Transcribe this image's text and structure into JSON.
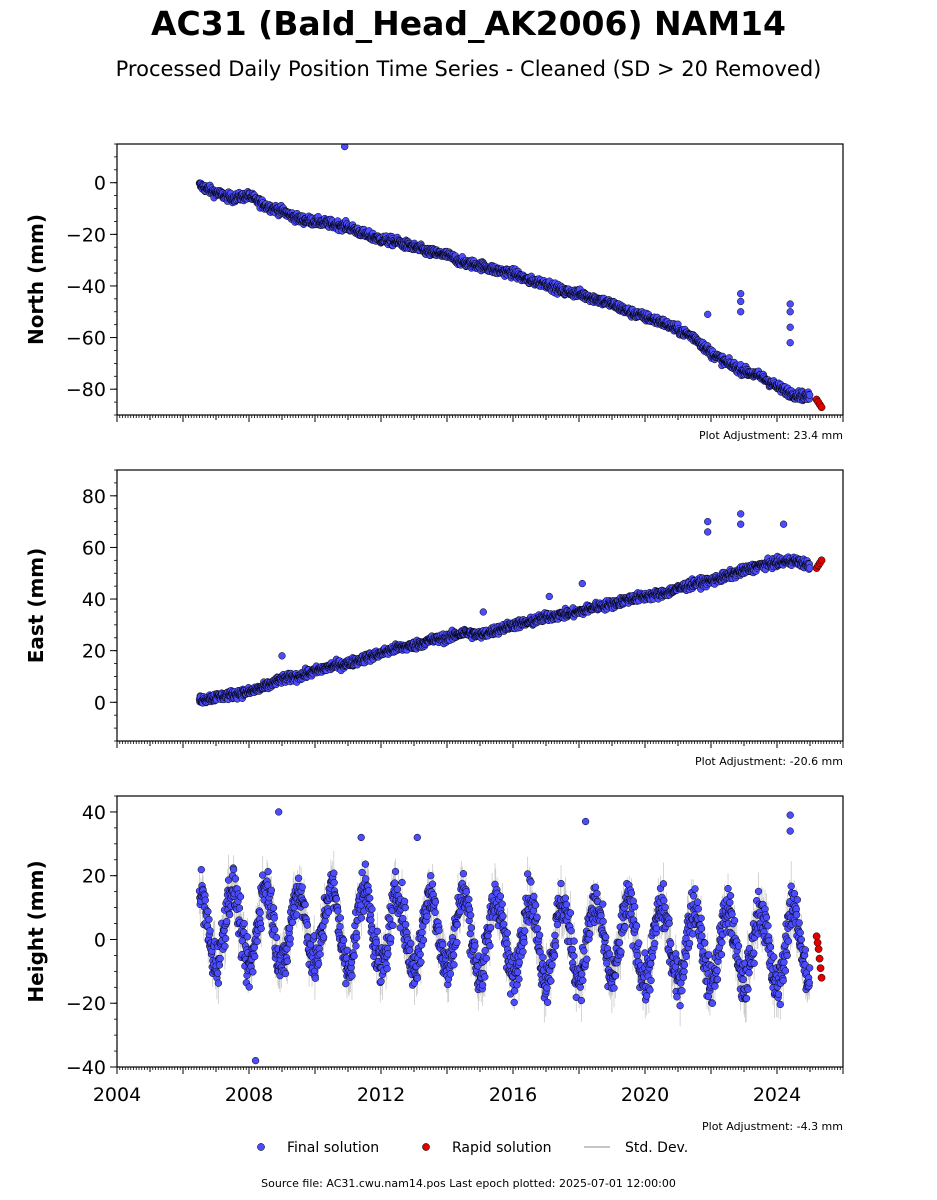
{
  "title": "AC31 (Bald_Head_AK2006) NAM14",
  "subtitle": "Processed Daily Position Time Series - Cleaned (SD > 20 Removed)",
  "footer": "Source file: AC31.cwu.nam14.pos  Last epoch plotted: 2025-07-01 12:00:00",
  "colors": {
    "final": "#4c4cff",
    "rapid": "#e00000",
    "stddev": "#b4b4b4",
    "edge": "#000000"
  },
  "chart_data": [
    {
      "type": "scatter",
      "ylabel": "North (mm)",
      "xlim": [
        2004,
        2026
      ],
      "ylim": [
        -90,
        15
      ],
      "yticks": [
        0,
        -20,
        -40,
        -60,
        -80
      ],
      "ytick_labels": [
        "0",
        "−20",
        "−40",
        "−60",
        "−80"
      ],
      "adjustment": "Plot Adjustment: 23.4 mm",
      "grid": false,
      "series": [
        {
          "name": "Final solution",
          "x": [
            2006.5,
            2007.0,
            2007.5,
            2008.0,
            2008.5,
            2009.0,
            2009.5,
            2010.0,
            2010.5,
            2011.0,
            2011.5,
            2012.0,
            2012.5,
            2013.0,
            2013.5,
            2014.0,
            2014.5,
            2015.0,
            2015.5,
            2016.0,
            2016.5,
            2017.0,
            2017.5,
            2018.0,
            2018.5,
            2019.0,
            2019.5,
            2020.0,
            2020.5,
            2021.0,
            2021.5,
            2022.0,
            2022.5,
            2023.0,
            2023.5,
            2024.0,
            2024.5,
            2025.0
          ],
          "y": [
            -1,
            -4,
            -6,
            -5,
            -9,
            -11,
            -14,
            -15,
            -16,
            -17,
            -20,
            -22,
            -23,
            -25,
            -27,
            -28,
            -31,
            -32,
            -34,
            -35,
            -38,
            -39,
            -42,
            -43,
            -45,
            -47,
            -50,
            -52,
            -54,
            -57,
            -60,
            -66,
            -70,
            -73,
            -75,
            -79,
            -82,
            -83
          ],
          "outliers": [
            [
              2010.9,
              14
            ],
            [
              2021.9,
              -51
            ],
            [
              2022.9,
              -43
            ],
            [
              2022.9,
              -46
            ],
            [
              2022.9,
              -50
            ],
            [
              2024.4,
              -47
            ],
            [
              2024.4,
              -50
            ],
            [
              2024.4,
              -56
            ],
            [
              2024.4,
              -62
            ]
          ]
        },
        {
          "name": "Rapid solution",
          "x": [
            2025.2,
            2025.25,
            2025.3,
            2025.35
          ],
          "y": [
            -84,
            -85,
            -86,
            -87
          ]
        }
      ]
    },
    {
      "type": "scatter",
      "ylabel": "East (mm)",
      "xlim": [
        2004,
        2026
      ],
      "ylim": [
        -15,
        90
      ],
      "yticks": [
        0,
        20,
        40,
        60,
        80
      ],
      "ytick_labels": [
        "0",
        "20",
        "40",
        "60",
        "80"
      ],
      "adjustment": "Plot Adjustment: -20.6 mm",
      "grid": false,
      "series": [
        {
          "name": "Final solution",
          "x": [
            2006.5,
            2007.0,
            2007.5,
            2008.0,
            2008.5,
            2009.0,
            2009.5,
            2010.0,
            2010.5,
            2011.0,
            2011.5,
            2012.0,
            2012.5,
            2013.0,
            2013.5,
            2014.0,
            2014.5,
            2015.0,
            2015.5,
            2016.0,
            2016.5,
            2017.0,
            2017.5,
            2018.0,
            2018.5,
            2019.0,
            2019.5,
            2020.0,
            2020.5,
            2021.0,
            2021.5,
            2022.0,
            2022.5,
            2023.0,
            2023.5,
            2024.0,
            2024.5,
            2025.0
          ],
          "y": [
            1,
            2,
            3,
            4,
            6,
            9,
            10,
            12,
            14,
            15,
            17,
            19,
            21,
            22,
            24,
            25,
            27,
            26,
            28,
            30,
            31,
            33,
            34,
            35,
            37,
            38,
            40,
            41,
            42,
            44,
            46,
            47,
            49,
            51,
            53,
            54,
            55,
            53
          ],
          "outliers": [
            [
              2021.9,
              70
            ],
            [
              2021.9,
              66
            ],
            [
              2022.9,
              73
            ],
            [
              2022.9,
              69
            ],
            [
              2024.2,
              69
            ],
            [
              2018.1,
              46
            ],
            [
              2009.0,
              18
            ],
            [
              2015.1,
              35
            ],
            [
              2017.1,
              41
            ]
          ]
        },
        {
          "name": "Rapid solution",
          "x": [
            2025.2,
            2025.25,
            2025.3,
            2025.35
          ],
          "y": [
            52,
            53,
            54,
            55
          ]
        }
      ]
    },
    {
      "type": "scatter",
      "ylabel": "Height (mm)",
      "xlim": [
        2004,
        2026
      ],
      "ylim": [
        -40,
        45
      ],
      "yticks": [
        40,
        20,
        0,
        -20,
        -40
      ],
      "ytick_labels": [
        "40",
        "20",
        "0",
        "−20",
        "−40"
      ],
      "xticks": [
        2004,
        2008,
        2012,
        2016,
        2020,
        2024
      ],
      "xtick_labels": [
        "2004",
        "2008",
        "2012",
        "2016",
        "2020",
        "2024"
      ],
      "adjustment": "Plot Adjustment: -4.3 mm",
      "grid": false,
      "seasonal_amplitude": 12,
      "series": [
        {
          "name": "Final solution",
          "x": [
            2006.5,
            2007.0,
            2007.5,
            2008.0,
            2008.5,
            2009.0,
            2009.5,
            2010.0,
            2010.5,
            2011.0,
            2011.5,
            2012.0,
            2012.5,
            2013.0,
            2013.5,
            2014.0,
            2014.5,
            2015.0,
            2015.5,
            2016.0,
            2016.5,
            2017.0,
            2017.5,
            2018.0,
            2018.5,
            2019.0,
            2019.5,
            2020.0,
            2020.5,
            2021.0,
            2021.5,
            2022.0,
            2022.5,
            2023.0,
            2023.5,
            2024.0,
            2024.5,
            2025.0
          ],
          "y": [
            3,
            5,
            4,
            3,
            5,
            4,
            3,
            5,
            4,
            3,
            4,
            3,
            2,
            3,
            2,
            3,
            2,
            1,
            1,
            0,
            1,
            0,
            -1,
            0,
            -1,
            0,
            -1,
            -1,
            -2,
            -1,
            -2,
            -2,
            -3,
            -2,
            -3,
            -3,
            -2,
            -3
          ],
          "outliers": [
            [
              2008.9,
              40
            ],
            [
              2008.2,
              -38
            ],
            [
              2018.2,
              37
            ],
            [
              2024.4,
              39
            ],
            [
              2024.4,
              34
            ],
            [
              2011.4,
              32
            ],
            [
              2013.1,
              32
            ]
          ]
        },
        {
          "name": "Rapid solution",
          "x": [
            2025.2,
            2025.23,
            2025.26,
            2025.29,
            2025.32,
            2025.35
          ],
          "y": [
            1,
            -1,
            -3,
            -6,
            -9,
            -12
          ]
        }
      ]
    }
  ],
  "legend": {
    "placement": "bottom",
    "items": [
      {
        "label": "Final solution",
        "kind": "final"
      },
      {
        "label": "Rapid solution",
        "kind": "rapid"
      },
      {
        "label": "Std. Dev.",
        "kind": "stddev"
      }
    ]
  }
}
